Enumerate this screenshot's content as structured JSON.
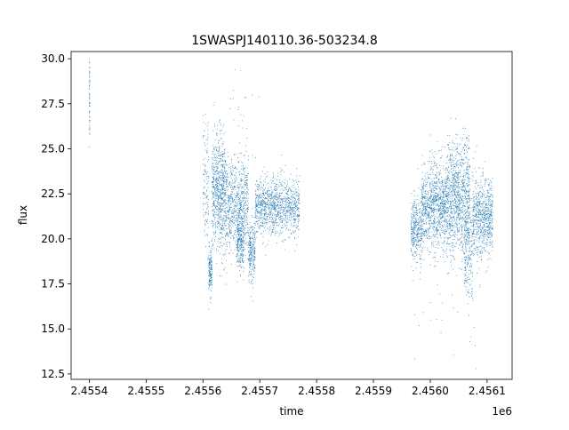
{
  "chart_data": {
    "type": "scatter",
    "title": "1SWASPJ140110.36-503234.8",
    "xlabel": "time",
    "ylabel": "flux",
    "x_offset_label": "1e6",
    "xlim": [
      2455368,
      2456144
    ],
    "ylim": [
      12.2,
      30.4
    ],
    "x_ticks": [
      2455400,
      2455500,
      2455600,
      2455700,
      2455800,
      2455900,
      2456000,
      2456100
    ],
    "x_tick_labels": [
      "2.4554",
      "2.4555",
      "2.4556",
      "2.4557",
      "2.4558",
      "2.4559",
      "2.4560",
      "2.4561"
    ],
    "y_ticks": [
      12.5,
      15.0,
      17.5,
      20.0,
      22.5,
      25.0,
      27.5,
      30.0
    ],
    "y_tick_labels": [
      "12.5",
      "15.0",
      "17.5",
      "20.0",
      "22.5",
      "25.0",
      "27.5",
      "30.0"
    ],
    "grid": false,
    "marker_color": "#1f77b4",
    "segments": [
      {
        "x_start": 2455400,
        "x_end": 2455401,
        "y_center": 28.0,
        "y_spread": 1.2,
        "points": 60
      },
      {
        "x_start": 2455600,
        "x_end": 2455610,
        "y_center": 23.0,
        "y_spread": 1.8,
        "points": 120
      },
      {
        "x_start": 2455610,
        "x_end": 2455616,
        "y_center": 18.2,
        "y_spread": 0.6,
        "points": 160
      },
      {
        "x_start": 2455616,
        "x_end": 2455640,
        "y_center": 22.5,
        "y_spread": 1.6,
        "points": 700
      },
      {
        "x_start": 2455640,
        "x_end": 2455680,
        "y_center": 21.8,
        "y_spread": 1.3,
        "points": 700
      },
      {
        "x_start": 2455660,
        "x_end": 2455672,
        "y_center": 19.8,
        "y_spread": 0.9,
        "points": 250
      },
      {
        "x_start": 2455680,
        "x_end": 2455692,
        "y_center": 19.2,
        "y_spread": 0.8,
        "points": 250
      },
      {
        "x_start": 2455692,
        "x_end": 2455770,
        "y_center": 21.8,
        "y_spread": 0.8,
        "points": 1100
      },
      {
        "x_start": 2455966,
        "x_end": 2455985,
        "y_center": 20.5,
        "y_spread": 0.9,
        "points": 350
      },
      {
        "x_start": 2455985,
        "x_end": 2456030,
        "y_center": 21.8,
        "y_spread": 1.2,
        "points": 1000
      },
      {
        "x_start": 2456030,
        "x_end": 2456070,
        "y_center": 22.2,
        "y_spread": 1.6,
        "points": 1000
      },
      {
        "x_start": 2456060,
        "x_end": 2456075,
        "y_center": 19.5,
        "y_spread": 1.6,
        "points": 200
      },
      {
        "x_start": 2456075,
        "x_end": 2456110,
        "y_center": 21.2,
        "y_spread": 1.1,
        "points": 700
      },
      {
        "x_start": 2455625,
        "x_end": 2455700,
        "y_center": 27.0,
        "y_spread": 1.2,
        "points": 25
      },
      {
        "x_start": 2455970,
        "x_end": 2456090,
        "y_center": 15.0,
        "y_spread": 1.3,
        "points": 25
      }
    ]
  }
}
